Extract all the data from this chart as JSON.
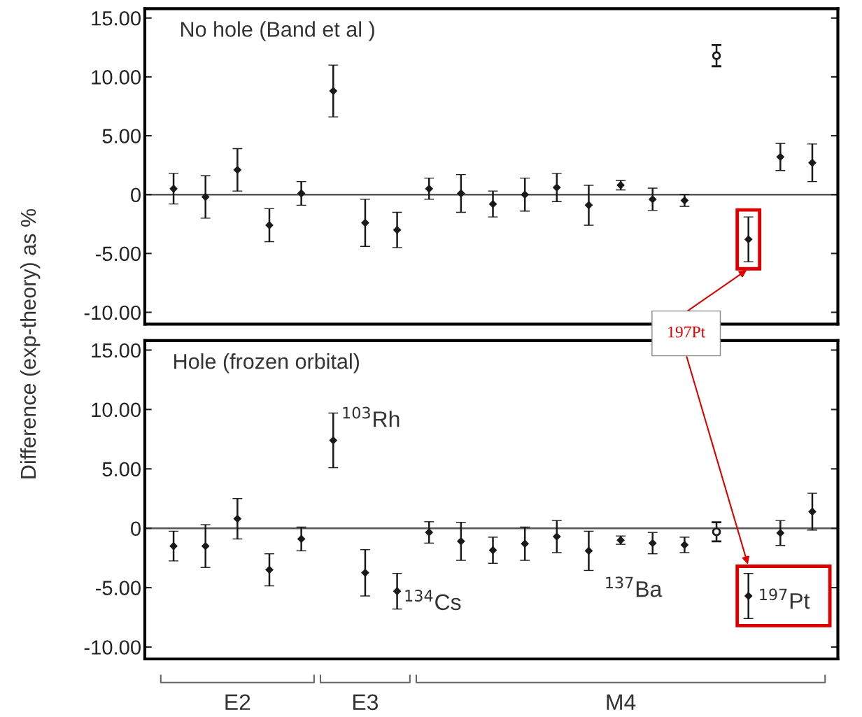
{
  "chart_data": [
    {
      "type": "scatter",
      "title": "No hole (Band et al )",
      "ylabel": "Difference (exp-theory) as %",
      "categories": [
        null,
        null,
        null,
        null,
        null,
        null,
        null,
        null,
        null,
        null,
        null,
        null,
        null,
        null,
        null,
        null,
        null,
        null,
        null,
        null,
        null
      ],
      "series": [
        {
          "color": "#1a1a1a",
          "marker": "diamond",
          "values": [
            0.5,
            -0.2,
            2.1,
            -2.6,
            0.1,
            8.8,
            -2.4,
            -3.0,
            0.5,
            0.1,
            -0.8,
            0.0,
            0.6,
            -0.9,
            0.8,
            -0.4,
            -0.5,
            null,
            -3.8,
            3.2,
            2.7
          ],
          "errors": [
            1.3,
            1.8,
            1.8,
            1.4,
            1.0,
            2.2,
            2.0,
            1.5,
            0.9,
            1.6,
            1.1,
            1.4,
            1.2,
            1.7,
            0.4,
            0.95,
            0.5,
            null,
            1.9,
            1.15,
            1.6
          ]
        },
        {
          "color": "#1a1a1a",
          "marker": "circle",
          "values": [
            null,
            null,
            null,
            null,
            null,
            null,
            null,
            null,
            null,
            null,
            null,
            null,
            null,
            null,
            null,
            null,
            null,
            11.8,
            null,
            null,
            null
          ],
          "errors": [
            null,
            null,
            null,
            null,
            null,
            null,
            null,
            null,
            null,
            null,
            null,
            null,
            null,
            null,
            null,
            null,
            null,
            0.9,
            null,
            null,
            null
          ]
        }
      ],
      "ylim": [
        -11,
        15.8
      ],
      "yticks": [
        {
          "value": 15,
          "label": "15.00"
        },
        {
          "value": 10,
          "label": "10.00"
        },
        {
          "value": 5,
          "label": "5.00"
        },
        0,
        {
          "value": -5,
          "label": "-5.00"
        },
        {
          "value": -10,
          "label": "-10.00"
        }
      ],
      "ref_lines": [
        {
          "axis": "y",
          "value": 0,
          "color": "#555555"
        }
      ],
      "tick_labels": "y",
      "grid": false,
      "legend": false,
      "annotations": [
        "197Pt"
      ]
    },
    {
      "type": "scatter",
      "title": "Hole (frozen orbital)",
      "categories": [
        null,
        null,
        null,
        null,
        null,
        null,
        null,
        null,
        null,
        null,
        null,
        null,
        null,
        null,
        null,
        null,
        null,
        null,
        null,
        null,
        null
      ],
      "series": [
        {
          "color": "#1a1a1a",
          "marker": "diamond",
          "values": [
            -1.5,
            -1.5,
            0.8,
            -3.5,
            -0.9,
            7.4,
            -3.75,
            -5.3,
            -0.35,
            -1.1,
            -1.85,
            -1.3,
            -0.7,
            -1.9,
            -1.0,
            -1.25,
            -1.4,
            null,
            -5.7,
            -0.4,
            1.4
          ],
          "errors": [
            1.25,
            1.8,
            1.7,
            1.35,
            1.0,
            2.3,
            1.95,
            1.5,
            0.9,
            1.6,
            1.1,
            1.4,
            1.35,
            1.65,
            0.35,
            0.9,
            0.65,
            null,
            1.9,
            1.05,
            1.55
          ]
        },
        {
          "color": "#1a1a1a",
          "marker": "circle",
          "values": [
            null,
            null,
            null,
            null,
            null,
            null,
            null,
            null,
            null,
            null,
            null,
            null,
            null,
            null,
            null,
            null,
            null,
            -0.3,
            null,
            null,
            null
          ],
          "errors": [
            null,
            null,
            null,
            null,
            null,
            null,
            null,
            null,
            null,
            null,
            null,
            null,
            null,
            null,
            null,
            null,
            null,
            0.8,
            null,
            null,
            null
          ]
        }
      ],
      "ylim": [
        -11,
        15.8
      ],
      "yticks": [
        {
          "value": 15,
          "label": "15.00"
        },
        {
          "value": 10,
          "label": "10.00"
        },
        {
          "value": 5,
          "label": "5.00"
        },
        0,
        {
          "value": -5,
          "label": "-5.00"
        },
        {
          "value": -10,
          "label": "-10.00"
        }
      ],
      "ref_lines": [
        {
          "axis": "y",
          "value": 0,
          "color": "#555555"
        }
      ],
      "tick_labels": "y",
      "grid": false,
      "legend": false,
      "annotations": [
        "$^{103}$Rh",
        "$^{134}$Cs",
        "$^{137}$Ba",
        "$^{197}$Pt",
        "E2",
        "E3",
        "M4"
      ]
    }
  ]
}
